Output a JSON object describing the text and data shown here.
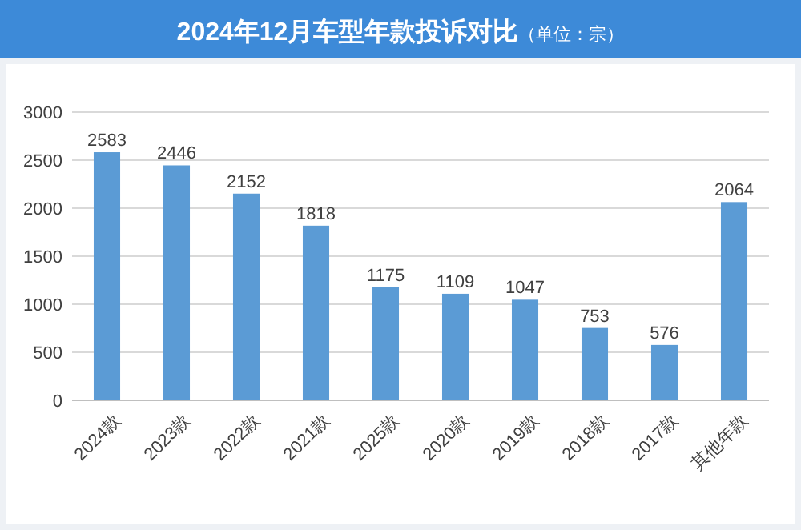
{
  "chart_data": {
    "type": "bar",
    "title": "2024年12月车型年款投诉对比",
    "subtitle": "（单位：宗）",
    "categories": [
      "2024款",
      "2023款",
      "2022款",
      "2021款",
      "2025款",
      "2020款",
      "2019款",
      "2018款",
      "2017款",
      "其他年款"
    ],
    "values": [
      2583,
      2446,
      2152,
      1818,
      1175,
      1109,
      1047,
      753,
      576,
      2064
    ],
    "color": "#5b9bd5",
    "ylim": [
      0,
      3000
    ],
    "yticks": [
      0,
      500,
      1000,
      1500,
      2000,
      2500,
      3000
    ],
    "grid": "y",
    "data_labels": true
  }
}
